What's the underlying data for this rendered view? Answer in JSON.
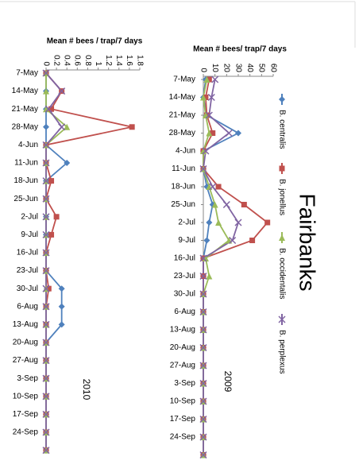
{
  "title": "Fairbanks",
  "chart_data": [
    {
      "type": "line",
      "title": "2010",
      "ylabel": "Mean # bees / trap/7 days",
      "categories": [
        "7-May",
        "14-May",
        "21-May",
        "28-May",
        "4-Jun",
        "11-Jun",
        "18-Jun",
        "25-Jun",
        "2-Jul",
        "9-Jul",
        "16-Jul",
        "23-Jul",
        "30-Jul",
        "6-Aug",
        "13-Aug",
        "20-Aug",
        "27-Aug",
        "3-Sep",
        "10-Sep",
        "17-Sep",
        "24-Sep",
        null
      ],
      "ylim": [
        0,
        1.8
      ],
      "yticks": [
        0,
        0.2,
        0.4,
        0.6,
        0.8,
        1,
        1.2,
        1.4,
        1.6,
        1.8
      ],
      "series": [
        {
          "color": "#4f81bd",
          "marker": "diamond",
          "values": [
            0,
            0,
            0,
            0,
            0,
            0.4,
            0,
            0,
            0,
            0,
            0,
            0,
            0.3,
            0.3,
            0.3,
            0,
            0,
            0,
            0,
            0,
            0,
            0
          ]
        },
        {
          "color": "#c0504d",
          "marker": "square",
          "values": [
            0,
            0.3,
            0.1,
            1.65,
            0,
            0,
            0.1,
            0,
            0.2,
            0.1,
            0,
            0,
            0.05,
            0,
            0,
            0,
            0,
            0,
            0,
            0,
            0,
            0
          ]
        },
        {
          "color": "#9bbb59",
          "marker": "triangle",
          "values": [
            0,
            0,
            0,
            0.4,
            0,
            0,
            0,
            0,
            0,
            0,
            0,
            0,
            0,
            0,
            0,
            0,
            0,
            0,
            0,
            0,
            0,
            0
          ]
        },
        {
          "color": "#8064a2",
          "marker": "x",
          "values": [
            0,
            0.3,
            0.05,
            0.3,
            0,
            0,
            0,
            0,
            0,
            0,
            0,
            0,
            0,
            0,
            0,
            0,
            0,
            0,
            0,
            0,
            0,
            0
          ]
        }
      ]
    },
    {
      "type": "line",
      "title": "2009",
      "ylabel": "Mean # bees/ trap/7 days",
      "categories": [
        "7-May",
        "14-May",
        "21-May",
        "28-May",
        "4-Jun",
        "11-Jun",
        "18-Jun",
        "25-Jun",
        "2-Jul",
        "9-Jul",
        "16-Jul",
        "23-Jul",
        "30-Jul",
        "6-Aug",
        "13-Aug",
        "20-Aug",
        "27-Aug",
        "3-Sep",
        "10-Sep",
        "17-Sep",
        "24-Sep",
        null
      ],
      "ylim": [
        0,
        60
      ],
      "yticks": [
        0,
        10,
        20,
        30,
        40,
        50,
        60
      ],
      "series": [
        {
          "name": "B. centralis",
          "color": "#4f81bd",
          "marker": "diamond",
          "values": [
            2,
            0,
            3,
            30,
            0,
            0,
            3,
            8,
            5,
            3,
            0,
            0,
            0,
            0,
            0,
            0,
            0,
            0,
            0,
            0,
            0,
            0
          ]
        },
        {
          "name": "B. jonellus",
          "color": "#c0504d",
          "marker": "square",
          "values": [
            5,
            2,
            3,
            8,
            0,
            0,
            13,
            35,
            55,
            42,
            0,
            0,
            0,
            0,
            0,
            0,
            0,
            0,
            0,
            0,
            0,
            0
          ]
        },
        {
          "name": "B. occidentalis",
          "color": "#9bbb59",
          "marker": "triangle",
          "values": [
            3,
            0,
            2,
            5,
            0,
            0,
            5,
            10,
            13,
            22,
            2,
            5,
            0,
            0,
            0,
            0,
            0,
            0,
            0,
            0,
            0,
            0
          ]
        },
        {
          "name": "B. perplexus",
          "color": "#8064a2",
          "marker": "x",
          "values": [
            10,
            7,
            5,
            22,
            2,
            0,
            8,
            20,
            30,
            25,
            0,
            0,
            0,
            0,
            0,
            0,
            0,
            0,
            0,
            0,
            0,
            0
          ]
        }
      ]
    }
  ]
}
